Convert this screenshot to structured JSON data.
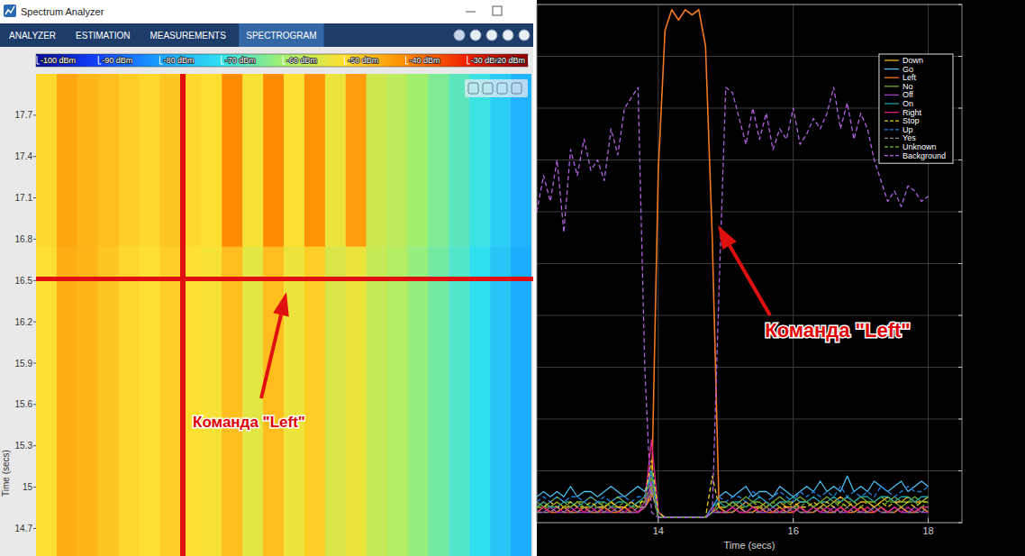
{
  "window": {
    "title": "Spectrum Analyzer",
    "tabs": [
      "ANALYZER",
      "ESTIMATION",
      "MEASUREMENTS",
      "SPECTROGRAM"
    ],
    "active_tab": 3
  },
  "chart_data": [
    {
      "type": "heatmap",
      "ylabel": "Time (secs)",
      "ylim": [
        14.5,
        18
      ],
      "yticks": [
        14.7,
        15,
        15.3,
        15.6,
        15.9,
        16.2,
        16.5,
        16.8,
        17.1,
        17.4,
        17.7
      ],
      "tick_labels": "y",
      "y_edges": [
        14.5,
        16.75,
        18
      ],
      "cells": [
        [
          -50,
          -44,
          -45,
          -47,
          -49,
          -50,
          -48,
          -50,
          -51,
          -46,
          -53,
          -46,
          -52,
          -48,
          -54,
          -52,
          -56,
          -58,
          -61,
          -64,
          -67,
          -70,
          -74,
          -78
        ],
        [
          -49,
          -43,
          -45,
          -46,
          -48,
          -49,
          -47,
          -49,
          -50,
          -40,
          -51,
          -40,
          -50,
          -41,
          -52,
          -42,
          -55,
          -57,
          -60,
          -63,
          -66,
          -69,
          -73,
          -77
        ]
      ],
      "color_range": [
        -100,
        -20
      ],
      "color_ticks": [
        {
          "value": -100,
          "label": "-100 dBm"
        },
        {
          "value": -90,
          "label": "-90 dBm"
        },
        {
          "value": -80,
          "label": "-80 dBm"
        },
        {
          "value": -70,
          "label": "-70 dBm"
        },
        {
          "value": -60,
          "label": "-60 dBm"
        },
        {
          "value": -50,
          "label": "-50 dBm"
        },
        {
          "value": -40,
          "label": "-40 dBm"
        },
        {
          "value": -30,
          "label": "-30 dBm"
        },
        {
          "value": -20,
          "label": "-20 dBm"
        }
      ],
      "annotations": [
        "Команда \"Left\""
      ]
    },
    {
      "type": "line",
      "xlabel": "Time (secs)",
      "xlim": [
        12.2,
        18.5
      ],
      "xticks": [
        14,
        16,
        18
      ],
      "ylim": [
        0,
        1
      ],
      "yticks": [
        0,
        0.1,
        0.2,
        0.3,
        0.4,
        0.5,
        0.6,
        0.7,
        0.8,
        0.9,
        1
      ],
      "tick_labels": "x",
      "grid": true,
      "legend": "upper right",
      "x": [
        12.2,
        12.3,
        12.4,
        12.5,
        12.6,
        12.7,
        12.8,
        12.9,
        13.0,
        13.1,
        13.2,
        13.3,
        13.4,
        13.5,
        13.6,
        13.7,
        13.8,
        13.9,
        14.0,
        14.1,
        14.2,
        14.3,
        14.4,
        14.5,
        14.6,
        14.7,
        14.8,
        14.9,
        15.0,
        15.1,
        15.2,
        15.3,
        15.4,
        15.5,
        15.6,
        15.7,
        15.8,
        15.9,
        16.0,
        16.1,
        16.2,
        16.3,
        16.4,
        16.5,
        16.6,
        16.7,
        16.8,
        16.9,
        17.0,
        17.1,
        17.2,
        17.3,
        17.4,
        17.5,
        17.6,
        17.7,
        17.8,
        17.9,
        18.0
      ],
      "series": [
        {
          "name": "Down",
          "color": "#edb120",
          "line_style": "solid",
          "values": [
            0.03,
            0.04,
            0.03,
            0.04,
            0.03,
            0.03,
            0.04,
            0.03,
            0.03,
            0.04,
            0.03,
            0.04,
            0.03,
            0.03,
            0.04,
            0.03,
            0.03,
            0.06,
            0.02,
            0.01,
            0.01,
            0.01,
            0.01,
            0.01,
            0.01,
            0.01,
            0.02,
            0.03,
            0.03,
            0.04,
            0.03,
            0.04,
            0.03,
            0.03,
            0.04,
            0.03,
            0.04,
            0.03,
            0.03,
            0.04,
            0.04,
            0.03,
            0.04,
            0.03,
            0.04,
            0.05,
            0.04,
            0.03,
            0.04,
            0.04,
            0.03,
            0.04,
            0.05,
            0.04,
            0.04,
            0.05,
            0.04,
            0.04,
            0.05
          ]
        },
        {
          "name": "Go",
          "color": "#4dbeee",
          "line_style": "solid",
          "values": [
            0.05,
            0.06,
            0.05,
            0.06,
            0.05,
            0.07,
            0.05,
            0.06,
            0.06,
            0.05,
            0.06,
            0.07,
            0.06,
            0.05,
            0.06,
            0.07,
            0.06,
            0.1,
            0.02,
            0.01,
            0.01,
            0.01,
            0.01,
            0.01,
            0.01,
            0.01,
            0.03,
            0.05,
            0.06,
            0.05,
            0.06,
            0.07,
            0.05,
            0.06,
            0.06,
            0.05,
            0.07,
            0.06,
            0.05,
            0.06,
            0.07,
            0.06,
            0.08,
            0.06,
            0.07,
            0.06,
            0.09,
            0.06,
            0.07,
            0.06,
            0.08,
            0.07,
            0.06,
            0.07,
            0.08,
            0.06,
            0.07,
            0.08,
            0.07
          ]
        },
        {
          "name": "Left",
          "color": "#f07820",
          "line_style": "solid",
          "values": [
            0.02,
            0.03,
            0.02,
            0.02,
            0.03,
            0.02,
            0.02,
            0.03,
            0.02,
            0.02,
            0.03,
            0.02,
            0.02,
            0.03,
            0.02,
            0.02,
            0.03,
            0.05,
            0.68,
            0.95,
            0.99,
            0.97,
            0.99,
            0.98,
            0.99,
            0.92,
            0.55,
            0.03,
            0.02,
            0.02,
            0.03,
            0.02,
            0.02,
            0.03,
            0.02,
            0.02,
            0.03,
            0.02,
            0.02,
            0.03,
            0.02,
            0.02,
            0.03,
            0.02,
            0.02,
            0.03,
            0.02,
            0.02,
            0.03,
            0.02,
            0.02,
            0.03,
            0.02,
            0.02,
            0.03,
            0.02,
            0.02,
            0.03,
            0.02
          ]
        },
        {
          "name": "No",
          "color": "#77ac30",
          "line_style": "solid",
          "values": [
            0.04,
            0.03,
            0.04,
            0.05,
            0.04,
            0.03,
            0.04,
            0.04,
            0.05,
            0.04,
            0.03,
            0.04,
            0.05,
            0.04,
            0.03,
            0.04,
            0.04,
            0.07,
            0.01,
            0.01,
            0.01,
            0.01,
            0.01,
            0.01,
            0.01,
            0.01,
            0.02,
            0.04,
            0.04,
            0.03,
            0.04,
            0.05,
            0.04,
            0.04,
            0.03,
            0.04,
            0.05,
            0.04,
            0.04,
            0.05,
            0.04,
            0.03,
            0.04,
            0.05,
            0.04,
            0.04,
            0.05,
            0.04,
            0.05,
            0.04,
            0.04,
            0.05,
            0.04,
            0.05,
            0.04,
            0.04,
            0.05,
            0.04,
            0.05
          ]
        },
        {
          "name": "Off",
          "color": "#a040c0",
          "line_style": "solid",
          "values": [
            0.02,
            0.02,
            0.03,
            0.02,
            0.02,
            0.03,
            0.02,
            0.02,
            0.02,
            0.03,
            0.02,
            0.02,
            0.03,
            0.02,
            0.02,
            0.02,
            0.03,
            0.08,
            0.01,
            0.01,
            0.01,
            0.01,
            0.01,
            0.01,
            0.01,
            0.01,
            0.02,
            0.02,
            0.02,
            0.03,
            0.02,
            0.02,
            0.03,
            0.02,
            0.02,
            0.03,
            0.02,
            0.02,
            0.03,
            0.02,
            0.02,
            0.03,
            0.02,
            0.02,
            0.03,
            0.02,
            0.02,
            0.03,
            0.02,
            0.02,
            0.03,
            0.02,
            0.02,
            0.03,
            0.02,
            0.02,
            0.03,
            0.02,
            0.02
          ]
        },
        {
          "name": "On",
          "color": "#20a0a0",
          "line_style": "solid",
          "values": [
            0.03,
            0.04,
            0.03,
            0.03,
            0.04,
            0.04,
            0.03,
            0.04,
            0.03,
            0.04,
            0.04,
            0.03,
            0.04,
            0.04,
            0.03,
            0.04,
            0.05,
            0.1,
            0.01,
            0.01,
            0.01,
            0.01,
            0.01,
            0.01,
            0.01,
            0.01,
            0.03,
            0.04,
            0.03,
            0.04,
            0.04,
            0.03,
            0.04,
            0.05,
            0.04,
            0.03,
            0.04,
            0.04,
            0.05,
            0.04,
            0.04,
            0.05,
            0.04,
            0.04,
            0.05,
            0.04,
            0.05,
            0.04,
            0.05,
            0.05,
            0.04,
            0.05,
            0.05,
            0.04,
            0.05,
            0.05,
            0.04,
            0.05,
            0.05
          ]
        },
        {
          "name": "Right",
          "color": "#e0208a",
          "line_style": "solid",
          "values": [
            0.02,
            0.03,
            0.02,
            0.03,
            0.02,
            0.02,
            0.03,
            0.02,
            0.03,
            0.02,
            0.02,
            0.03,
            0.02,
            0.02,
            0.03,
            0.02,
            0.04,
            0.16,
            0.02,
            0.01,
            0.01,
            0.01,
            0.01,
            0.01,
            0.01,
            0.01,
            0.03,
            0.02,
            0.02,
            0.03,
            0.02,
            0.02,
            0.03,
            0.02,
            0.03,
            0.02,
            0.02,
            0.03,
            0.02,
            0.03,
            0.02,
            0.03,
            0.02,
            0.03,
            0.02,
            0.03,
            0.02,
            0.03,
            0.02,
            0.03,
            0.02,
            0.03,
            0.02,
            0.03,
            0.02,
            0.03,
            0.02,
            0.03,
            0.03
          ]
        },
        {
          "name": "Stop",
          "color": "#e8d020",
          "line_style": "dashed",
          "values": [
            0.03,
            0.03,
            0.04,
            0.03,
            0.03,
            0.04,
            0.03,
            0.03,
            0.04,
            0.03,
            0.03,
            0.04,
            0.03,
            0.03,
            0.04,
            0.03,
            0.05,
            0.12,
            0.02,
            0.01,
            0.01,
            0.01,
            0.01,
            0.01,
            0.01,
            0.01,
            0.09,
            0.03,
            0.03,
            0.04,
            0.03,
            0.03,
            0.04,
            0.03,
            0.03,
            0.04,
            0.03,
            0.03,
            0.04,
            0.03,
            0.03,
            0.04,
            0.03,
            0.04,
            0.03,
            0.04,
            0.03,
            0.04,
            0.03,
            0.04,
            0.03,
            0.04,
            0.03,
            0.04,
            0.03,
            0.04,
            0.03,
            0.04,
            0.04
          ]
        },
        {
          "name": "Up",
          "color": "#2080e0",
          "line_style": "dashed",
          "values": [
            0.04,
            0.05,
            0.04,
            0.05,
            0.04,
            0.05,
            0.05,
            0.04,
            0.05,
            0.04,
            0.05,
            0.04,
            0.05,
            0.05,
            0.04,
            0.05,
            0.05,
            0.09,
            0.01,
            0.01,
            0.01,
            0.01,
            0.01,
            0.01,
            0.01,
            0.01,
            0.03,
            0.05,
            0.04,
            0.05,
            0.05,
            0.04,
            0.06,
            0.05,
            0.04,
            0.05,
            0.06,
            0.05,
            0.04,
            0.06,
            0.05,
            0.06,
            0.05,
            0.06,
            0.05,
            0.07,
            0.05,
            0.06,
            0.05,
            0.06,
            0.05,
            0.07,
            0.06,
            0.05,
            0.06,
            0.07,
            0.06,
            0.06,
            0.07
          ]
        },
        {
          "name": "Yes",
          "color": "#8a8a8a",
          "line_style": "dashed",
          "values": [
            0.02,
            0.02,
            0.02,
            0.03,
            0.02,
            0.02,
            0.02,
            0.03,
            0.02,
            0.02,
            0.02,
            0.03,
            0.02,
            0.02,
            0.02,
            0.03,
            0.03,
            0.06,
            0.01,
            0.01,
            0.01,
            0.01,
            0.01,
            0.01,
            0.01,
            0.01,
            0.02,
            0.02,
            0.02,
            0.02,
            0.03,
            0.02,
            0.02,
            0.02,
            0.03,
            0.02,
            0.02,
            0.02,
            0.03,
            0.02,
            0.02,
            0.02,
            0.03,
            0.02,
            0.02,
            0.02,
            0.03,
            0.02,
            0.02,
            0.02,
            0.03,
            0.02,
            0.02,
            0.02,
            0.03,
            0.02,
            0.02,
            0.02,
            0.03
          ]
        },
        {
          "name": "Unknown",
          "color": "#60a020",
          "line_style": "dashed",
          "values": [
            0.03,
            0.03,
            0.03,
            0.04,
            0.03,
            0.03,
            0.04,
            0.03,
            0.03,
            0.03,
            0.04,
            0.03,
            0.03,
            0.04,
            0.03,
            0.03,
            0.04,
            0.09,
            0.01,
            0.01,
            0.01,
            0.01,
            0.01,
            0.01,
            0.01,
            0.01,
            0.02,
            0.03,
            0.03,
            0.04,
            0.03,
            0.03,
            0.04,
            0.03,
            0.03,
            0.04,
            0.03,
            0.04,
            0.03,
            0.03,
            0.04,
            0.03,
            0.04,
            0.03,
            0.04,
            0.03,
            0.04,
            0.04,
            0.03,
            0.04,
            0.04,
            0.03,
            0.04,
            0.04,
            0.03,
            0.04,
            0.04,
            0.03,
            0.04
          ]
        },
        {
          "name": "Background",
          "color": "#b060e0",
          "line_style": "dashed",
          "values": [
            0.6,
            0.67,
            0.62,
            0.7,
            0.56,
            0.72,
            0.67,
            0.74,
            0.68,
            0.7,
            0.66,
            0.76,
            0.71,
            0.8,
            0.82,
            0.84,
            0.3,
            0.02,
            0.01,
            0.01,
            0.01,
            0.01,
            0.01,
            0.01,
            0.01,
            0.01,
            0.02,
            0.45,
            0.84,
            0.83,
            0.78,
            0.73,
            0.8,
            0.74,
            0.79,
            0.72,
            0.76,
            0.74,
            0.8,
            0.73,
            0.75,
            0.78,
            0.76,
            0.79,
            0.84,
            0.76,
            0.81,
            0.74,
            0.79,
            0.76,
            0.7,
            0.66,
            0.62,
            0.64,
            0.61,
            0.65,
            0.64,
            0.62,
            0.63
          ]
        }
      ],
      "annotations": [
        "Команда \"Left\""
      ]
    }
  ]
}
